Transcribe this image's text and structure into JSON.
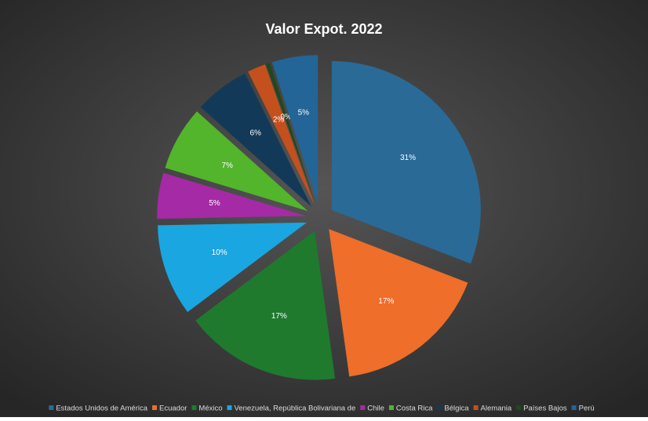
{
  "chart_data": {
    "type": "pie",
    "title": "Valor Expot. 2022",
    "categories": [
      "Estados Unidos de América",
      "Ecuador",
      "México",
      "Venezuela, República Bolivariana de",
      "Chile",
      "Costa Rica",
      "Bélgica",
      "Alemania",
      "Países Bajos",
      "Perú"
    ],
    "values": [
      31,
      17,
      17,
      10,
      5,
      7,
      6,
      2,
      0.4,
      5
    ],
    "value_labels": [
      "31%",
      "17%",
      "17%",
      "10%",
      "5%",
      "7%",
      "6%",
      "2%",
      "0%",
      "5%"
    ],
    "colors": [
      "#2a6a96",
      "#ee6e2a",
      "#1f7a2e",
      "#1aa6e0",
      "#a52aa5",
      "#52b52c",
      "#123a58",
      "#c4501e",
      "#1c4a1c",
      "#236596"
    ],
    "legend": "bottom"
  }
}
